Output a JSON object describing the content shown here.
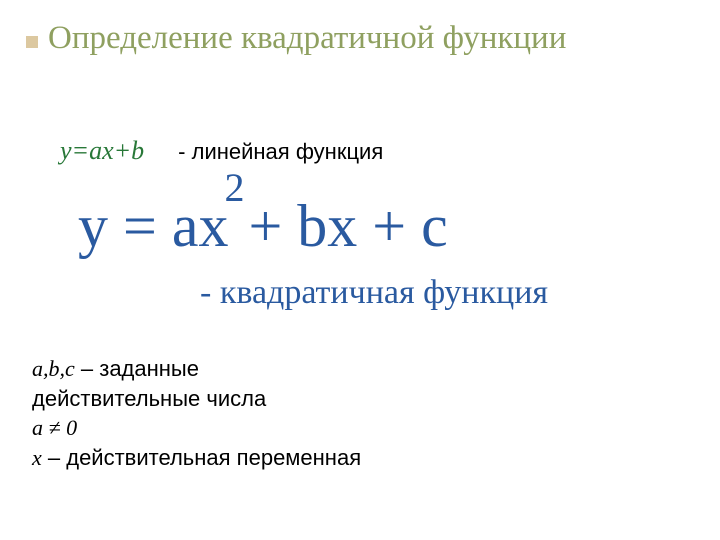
{
  "title": "Определение квадратичной функции",
  "linear": {
    "formula": "y=ax+b",
    "label": "- линейная функция"
  },
  "quadratic": {
    "formula_part1": "у = ах",
    "formula_exp": "2",
    "formula_part2": "+ bх + с",
    "label": "- квадратичная функция"
  },
  "notes": {
    "line1_italic": "a,b,c",
    "line1_rest": " – заданные",
    "line2": "действительные числа",
    "line3": "a ≠ 0",
    "line4_italic": "x",
    "line4_rest": " – действительная переменная"
  },
  "colors": {
    "title": "#8fa060",
    "bullet": "#dcc8a0",
    "linear_formula": "#287838",
    "quadratic": "#2a5aa0",
    "text": "#000000",
    "background": "#ffffff"
  }
}
